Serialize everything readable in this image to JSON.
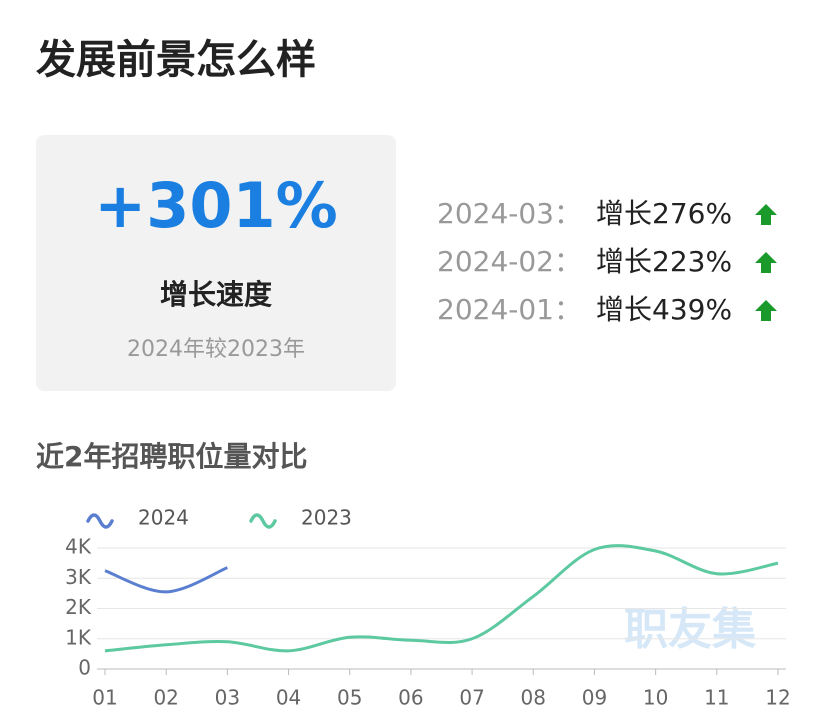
{
  "title": "发展前景怎么样",
  "summary": {
    "value": "+301%",
    "label": "增长速度",
    "note": "2024年较2023年"
  },
  "growth": [
    {
      "date": "2024-03：",
      "text": "增长276%"
    },
    {
      "date": "2024-02：",
      "text": "增长223%"
    },
    {
      "date": "2024-01：",
      "text": "增长439%"
    }
  ],
  "watermark": "职友集",
  "chart_data": {
    "type": "line",
    "title": "近2年招聘职位量对比",
    "categories": [
      "01",
      "02",
      "03",
      "04",
      "05",
      "06",
      "07",
      "08",
      "09",
      "10",
      "11",
      "12"
    ],
    "series": [
      {
        "name": "2024",
        "color": "#5b7fd0",
        "values": [
          3250,
          2550,
          3350,
          null,
          null,
          null,
          null,
          null,
          null,
          null,
          null,
          null
        ]
      },
      {
        "name": "2023",
        "color": "#5cc9a0",
        "values": [
          600,
          800,
          900,
          600,
          1050,
          950,
          1000,
          2400,
          3950,
          3900,
          3150,
          3500
        ]
      }
    ],
    "ylim": [
      0,
      4000
    ],
    "yticks": [
      0,
      {
        "value": 1000,
        "label": "1K"
      },
      {
        "value": 2000,
        "label": "2K"
      },
      {
        "value": 3000,
        "label": "3K"
      },
      {
        "value": 4000,
        "label": "4K"
      }
    ],
    "grid": true,
    "smooth": true
  }
}
